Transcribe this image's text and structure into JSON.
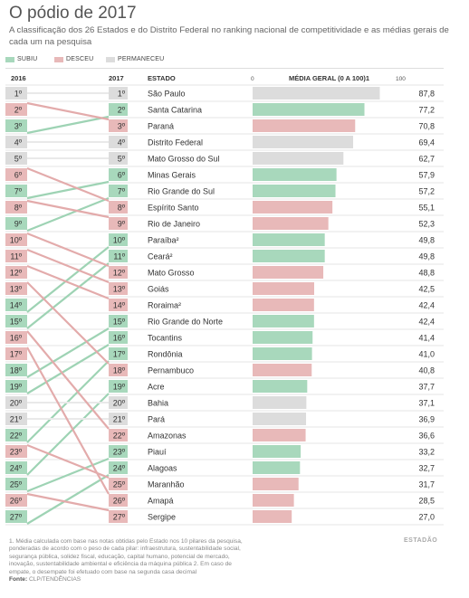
{
  "title": "O pódio de 2017",
  "subtitle": "A classificação dos 26 Estados e do Distrito Federal no ranking nacional de competitividade e as médias gerais de cada um na pesquisa",
  "legend": [
    {
      "label": "SUBIU",
      "status": "up"
    },
    {
      "label": "DESCEU",
      "status": "down"
    },
    {
      "label": "PERMANECEU",
      "status": "same"
    }
  ],
  "colors": {
    "up": "#a8d8bc",
    "down": "#e8b9b9",
    "same": "#dcdcdc",
    "line_up": "#9ed3b4",
    "line_down": "#e3abab"
  },
  "columns": {
    "col2016": "2016",
    "col2017": "2017",
    "state": "ESTADO",
    "score": "MÉDIA GERAL (0 A 100)1"
  },
  "chart_data": {
    "type": "bar",
    "x_range": [
      0,
      100
    ],
    "scale_labels": [
      "0",
      "100"
    ],
    "rank_suffix": "º",
    "rows": [
      {
        "rank2017": 1,
        "state": "São Paulo",
        "value": 87.8,
        "value_label": "87,8",
        "rank2016": 1,
        "status": "same"
      },
      {
        "rank2017": 2,
        "state": "Santa Catarina",
        "value": 77.2,
        "value_label": "77,2",
        "rank2016": 3,
        "status": "up"
      },
      {
        "rank2017": 3,
        "state": "Paraná",
        "value": 70.8,
        "value_label": "70,8",
        "rank2016": 2,
        "status": "down"
      },
      {
        "rank2017": 4,
        "state": "Distrito Federal",
        "value": 69.4,
        "value_label": "69,4",
        "rank2016": 4,
        "status": "same"
      },
      {
        "rank2017": 5,
        "state": "Mato Grosso do Sul",
        "value": 62.7,
        "value_label": "62,7",
        "rank2016": 5,
        "status": "same"
      },
      {
        "rank2017": 6,
        "state": "Minas Gerais",
        "value": 57.9,
        "value_label": "57,9",
        "rank2016": 7,
        "status": "up"
      },
      {
        "rank2017": 7,
        "state": "Rio Grande do Sul",
        "value": 57.2,
        "value_label": "57,2",
        "rank2016": 9,
        "status": "up"
      },
      {
        "rank2017": 8,
        "state": "Espírito Santo",
        "value": 55.1,
        "value_label": "55,1",
        "rank2016": 6,
        "status": "down"
      },
      {
        "rank2017": 9,
        "state": "Rio de Janeiro",
        "value": 52.3,
        "value_label": "52,3",
        "rank2016": 8,
        "status": "down"
      },
      {
        "rank2017": 10,
        "state": "Paraíba²",
        "value": 49.8,
        "value_label": "49,8",
        "rank2016": 14,
        "status": "up"
      },
      {
        "rank2017": 11,
        "state": "Ceará²",
        "value": 49.8,
        "value_label": "49,8",
        "rank2016": 15,
        "status": "up"
      },
      {
        "rank2017": 12,
        "state": "Mato Grosso",
        "value": 48.8,
        "value_label": "48,8",
        "rank2016": 10,
        "status": "down"
      },
      {
        "rank2017": 13,
        "state": "Goiás",
        "value": 42.5,
        "value_label": "42,5",
        "rank2016": 11,
        "status": "down"
      },
      {
        "rank2017": 14,
        "state": "Roraima²",
        "value": 42.4,
        "value_label": "42,4",
        "rank2016": 12,
        "status": "down"
      },
      {
        "rank2017": 15,
        "state": "Rio Grande do Norte",
        "value": 42.4,
        "value_label": "42,4",
        "rank2016": 18,
        "status": "up"
      },
      {
        "rank2017": 16,
        "state": "Tocantins",
        "value": 41.4,
        "value_label": "41,4",
        "rank2016": 19,
        "status": "up"
      },
      {
        "rank2017": 17,
        "state": "Rondônia",
        "value": 41.0,
        "value_label": "41,0",
        "rank2016": 22,
        "status": "up"
      },
      {
        "rank2017": 18,
        "state": "Pernambuco",
        "value": 40.8,
        "value_label": "40,8",
        "rank2016": 13,
        "status": "down"
      },
      {
        "rank2017": 19,
        "state": "Acre",
        "value": 37.7,
        "value_label": "37,7",
        "rank2016": 24,
        "status": "up"
      },
      {
        "rank2017": 20,
        "state": "Bahia",
        "value": 37.1,
        "value_label": "37,1",
        "rank2016": 20,
        "status": "same"
      },
      {
        "rank2017": 21,
        "state": "Pará",
        "value": 36.9,
        "value_label": "36,9",
        "rank2016": 21,
        "status": "same"
      },
      {
        "rank2017": 22,
        "state": "Amazonas",
        "value": 36.6,
        "value_label": "36,6",
        "rank2016": 16,
        "status": "down"
      },
      {
        "rank2017": 23,
        "state": "Piauí",
        "value": 33.2,
        "value_label": "33,2",
        "rank2016": 25,
        "status": "up"
      },
      {
        "rank2017": 24,
        "state": "Alagoas",
        "value": 32.7,
        "value_label": "32,7",
        "rank2016": 27,
        "status": "up"
      },
      {
        "rank2017": 25,
        "state": "Maranhão",
        "value": 31.7,
        "value_label": "31,7",
        "rank2016": 23,
        "status": "down"
      },
      {
        "rank2017": 26,
        "state": "Amapá",
        "value": 28.5,
        "value_label": "28,5",
        "rank2016": 17,
        "status": "down"
      },
      {
        "rank2017": 27,
        "state": "Sergipe",
        "value": 27.0,
        "value_label": "27,0",
        "rank2016": 26,
        "status": "down"
      }
    ]
  },
  "footnote": "1. Média calculada com base nas notas obtidas pelo Estado nos 10 pilares da pesquisa, ponderadas de acordo com o peso de cada pilar: infraestrutura, sustentabilidade social, segurança pública, solidez fiscal, educação, capital humano, potencial de mercado, inovação, sustentabilidade ambiental e eficiência da máquina pública 2. Em caso de empate, o desempate foi efetuado com base na segunda casa decimal",
  "source_label": "Fonte:",
  "source": "CLP/TENDÊNCIAS",
  "brand": "ESTADÃO"
}
